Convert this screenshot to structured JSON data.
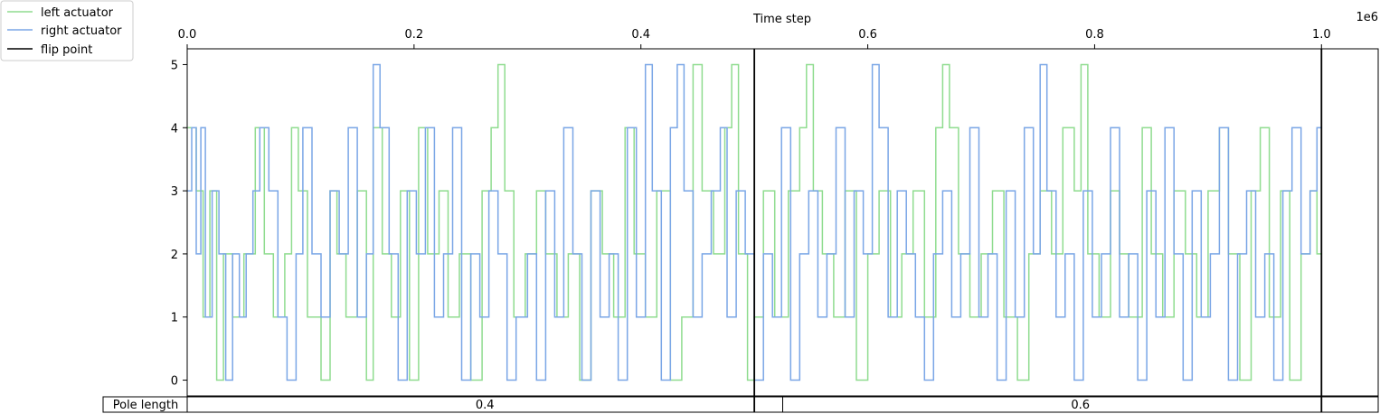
{
  "chart_data": {
    "type": "line",
    "title": "",
    "xlabel": "Time step",
    "x_offset_text": "1e6",
    "xlim": [
      0,
      1050000
    ],
    "x_ticks": [
      0.0,
      0.2,
      0.4,
      0.6,
      0.8,
      1.0
    ],
    "x_tick_labels": [
      "0.0",
      "0.2",
      "0.4",
      "0.6",
      "0.8",
      "1.0"
    ],
    "ylabel": "",
    "ylim": [
      -0.25,
      5.25
    ],
    "y_ticks": [
      0,
      1,
      2,
      3,
      4,
      5
    ],
    "y_tick_labels": [
      "0",
      "1",
      "2",
      "3",
      "4",
      "5"
    ],
    "legend": {
      "position": "top-left",
      "entries": [
        {
          "label": "left actuator",
          "color": "#8fdc8f"
        },
        {
          "label": "right actuator",
          "color": "#7aa6e6"
        },
        {
          "label": "flip point",
          "color": "#000000"
        }
      ]
    },
    "flip_points": [
      500000,
      1000000
    ],
    "series": [
      {
        "name": "left actuator",
        "color": "#8fdc8f",
        "steps": [
          [
            0,
            4
          ],
          [
            8000,
            3
          ],
          [
            14000,
            1
          ],
          [
            20000,
            3
          ],
          [
            26000,
            0
          ],
          [
            32000,
            2
          ],
          [
            40000,
            1
          ],
          [
            50000,
            2
          ],
          [
            60000,
            4
          ],
          [
            68000,
            2
          ],
          [
            76000,
            1
          ],
          [
            86000,
            2
          ],
          [
            92000,
            4
          ],
          [
            98000,
            3
          ],
          [
            106000,
            1
          ],
          [
            118000,
            0
          ],
          [
            126000,
            3
          ],
          [
            132000,
            2
          ],
          [
            140000,
            1
          ],
          [
            150000,
            3
          ],
          [
            158000,
            0
          ],
          [
            164000,
            4
          ],
          [
            172000,
            2
          ],
          [
            180000,
            1
          ],
          [
            188000,
            3
          ],
          [
            196000,
            0
          ],
          [
            204000,
            4
          ],
          [
            212000,
            2
          ],
          [
            222000,
            3
          ],
          [
            230000,
            1
          ],
          [
            240000,
            2
          ],
          [
            250000,
            0
          ],
          [
            260000,
            3
          ],
          [
            268000,
            4
          ],
          [
            274000,
            5
          ],
          [
            280000,
            3
          ],
          [
            288000,
            1
          ],
          [
            298000,
            2
          ],
          [
            308000,
            3
          ],
          [
            316000,
            2
          ],
          [
            326000,
            1
          ],
          [
            336000,
            2
          ],
          [
            346000,
            0
          ],
          [
            356000,
            3
          ],
          [
            366000,
            2
          ],
          [
            376000,
            1
          ],
          [
            386000,
            4
          ],
          [
            394000,
            2
          ],
          [
            404000,
            1
          ],
          [
            414000,
            3
          ],
          [
            426000,
            0
          ],
          [
            436000,
            1
          ],
          [
            446000,
            5
          ],
          [
            454000,
            3
          ],
          [
            464000,
            2
          ],
          [
            474000,
            4
          ],
          [
            480000,
            5
          ],
          [
            486000,
            2
          ],
          [
            494000,
            0
          ],
          [
            500000,
            1
          ],
          [
            508000,
            3
          ],
          [
            518000,
            1
          ],
          [
            530000,
            3
          ],
          [
            540000,
            4
          ],
          [
            546000,
            5
          ],
          [
            552000,
            3
          ],
          [
            560000,
            2
          ],
          [
            570000,
            1
          ],
          [
            580000,
            3
          ],
          [
            590000,
            0
          ],
          [
            600000,
            2
          ],
          [
            610000,
            3
          ],
          [
            620000,
            1
          ],
          [
            630000,
            2
          ],
          [
            640000,
            3
          ],
          [
            650000,
            1
          ],
          [
            660000,
            4
          ],
          [
            666000,
            5
          ],
          [
            672000,
            4
          ],
          [
            680000,
            2
          ],
          [
            690000,
            1
          ],
          [
            700000,
            2
          ],
          [
            710000,
            3
          ],
          [
            720000,
            1
          ],
          [
            732000,
            0
          ],
          [
            742000,
            2
          ],
          [
            752000,
            3
          ],
          [
            762000,
            2
          ],
          [
            772000,
            4
          ],
          [
            782000,
            3
          ],
          [
            788000,
            5
          ],
          [
            794000,
            2
          ],
          [
            804000,
            1
          ],
          [
            814000,
            3
          ],
          [
            822000,
            2
          ],
          [
            830000,
            1
          ],
          [
            842000,
            4
          ],
          [
            850000,
            2
          ],
          [
            860000,
            1
          ],
          [
            870000,
            3
          ],
          [
            880000,
            2
          ],
          [
            890000,
            1
          ],
          [
            900000,
            3
          ],
          [
            910000,
            4
          ],
          [
            918000,
            2
          ],
          [
            928000,
            0
          ],
          [
            938000,
            3
          ],
          [
            946000,
            4
          ],
          [
            954000,
            1
          ],
          [
            964000,
            3
          ],
          [
            972000,
            0
          ],
          [
            982000,
            2
          ],
          [
            990000,
            3
          ],
          [
            996000,
            2
          ]
        ]
      },
      {
        "name": "right actuator",
        "color": "#7aa6e6",
        "steps": [
          [
            0,
            3
          ],
          [
            4000,
            4
          ],
          [
            8000,
            2
          ],
          [
            12000,
            4
          ],
          [
            16000,
            1
          ],
          [
            22000,
            3
          ],
          [
            28000,
            2
          ],
          [
            34000,
            0
          ],
          [
            40000,
            2
          ],
          [
            46000,
            1
          ],
          [
            52000,
            2
          ],
          [
            58000,
            3
          ],
          [
            64000,
            4
          ],
          [
            72000,
            3
          ],
          [
            80000,
            1
          ],
          [
            88000,
            0
          ],
          [
            96000,
            2
          ],
          [
            102000,
            4
          ],
          [
            110000,
            2
          ],
          [
            118000,
            1
          ],
          [
            126000,
            3
          ],
          [
            134000,
            2
          ],
          [
            142000,
            4
          ],
          [
            150000,
            1
          ],
          [
            158000,
            2
          ],
          [
            164000,
            5
          ],
          [
            170000,
            4
          ],
          [
            178000,
            2
          ],
          [
            186000,
            0
          ],
          [
            194000,
            3
          ],
          [
            202000,
            2
          ],
          [
            210000,
            4
          ],
          [
            218000,
            1
          ],
          [
            226000,
            2
          ],
          [
            234000,
            4
          ],
          [
            242000,
            0
          ],
          [
            250000,
            2
          ],
          [
            258000,
            1
          ],
          [
            266000,
            3
          ],
          [
            274000,
            2
          ],
          [
            282000,
            0
          ],
          [
            290000,
            1
          ],
          [
            300000,
            2
          ],
          [
            308000,
            0
          ],
          [
            316000,
            3
          ],
          [
            324000,
            1
          ],
          [
            332000,
            4
          ],
          [
            340000,
            2
          ],
          [
            348000,
            0
          ],
          [
            356000,
            3
          ],
          [
            364000,
            1
          ],
          [
            372000,
            2
          ],
          [
            380000,
            0
          ],
          [
            388000,
            4
          ],
          [
            396000,
            1
          ],
          [
            404000,
            5
          ],
          [
            410000,
            3
          ],
          [
            418000,
            0
          ],
          [
            426000,
            4
          ],
          [
            432000,
            5
          ],
          [
            438000,
            3
          ],
          [
            446000,
            1
          ],
          [
            454000,
            2
          ],
          [
            462000,
            3
          ],
          [
            470000,
            4
          ],
          [
            476000,
            1
          ],
          [
            484000,
            3
          ],
          [
            492000,
            2
          ],
          [
            500000,
            0
          ],
          [
            508000,
            2
          ],
          [
            516000,
            1
          ],
          [
            524000,
            4
          ],
          [
            532000,
            0
          ],
          [
            540000,
            2
          ],
          [
            548000,
            3
          ],
          [
            556000,
            1
          ],
          [
            564000,
            2
          ],
          [
            572000,
            4
          ],
          [
            580000,
            1
          ],
          [
            588000,
            3
          ],
          [
            596000,
            2
          ],
          [
            604000,
            5
          ],
          [
            610000,
            4
          ],
          [
            618000,
            1
          ],
          [
            626000,
            3
          ],
          [
            634000,
            2
          ],
          [
            642000,
            1
          ],
          [
            650000,
            0
          ],
          [
            658000,
            2
          ],
          [
            666000,
            3
          ],
          [
            674000,
            1
          ],
          [
            682000,
            2
          ],
          [
            690000,
            4
          ],
          [
            698000,
            1
          ],
          [
            706000,
            2
          ],
          [
            714000,
            0
          ],
          [
            722000,
            3
          ],
          [
            730000,
            1
          ],
          [
            738000,
            4
          ],
          [
            746000,
            2
          ],
          [
            752000,
            5
          ],
          [
            758000,
            3
          ],
          [
            766000,
            1
          ],
          [
            774000,
            2
          ],
          [
            782000,
            0
          ],
          [
            790000,
            3
          ],
          [
            798000,
            1
          ],
          [
            806000,
            2
          ],
          [
            814000,
            4
          ],
          [
            822000,
            1
          ],
          [
            830000,
            2
          ],
          [
            838000,
            0
          ],
          [
            846000,
            3
          ],
          [
            854000,
            1
          ],
          [
            862000,
            4
          ],
          [
            870000,
            2
          ],
          [
            878000,
            0
          ],
          [
            886000,
            3
          ],
          [
            894000,
            1
          ],
          [
            902000,
            2
          ],
          [
            910000,
            4
          ],
          [
            918000,
            0
          ],
          [
            926000,
            2
          ],
          [
            934000,
            3
          ],
          [
            942000,
            1
          ],
          [
            950000,
            2
          ],
          [
            958000,
            0
          ],
          [
            966000,
            3
          ],
          [
            974000,
            4
          ],
          [
            982000,
            2
          ],
          [
            990000,
            3
          ],
          [
            996000,
            4
          ]
        ]
      }
    ],
    "bottom_table": {
      "row_label": "Pole length",
      "segments": [
        {
          "label": "0.4",
          "start": 0,
          "end": 525000
        },
        {
          "label": "0.6",
          "start": 525000,
          "end": 1050000
        }
      ]
    }
  }
}
